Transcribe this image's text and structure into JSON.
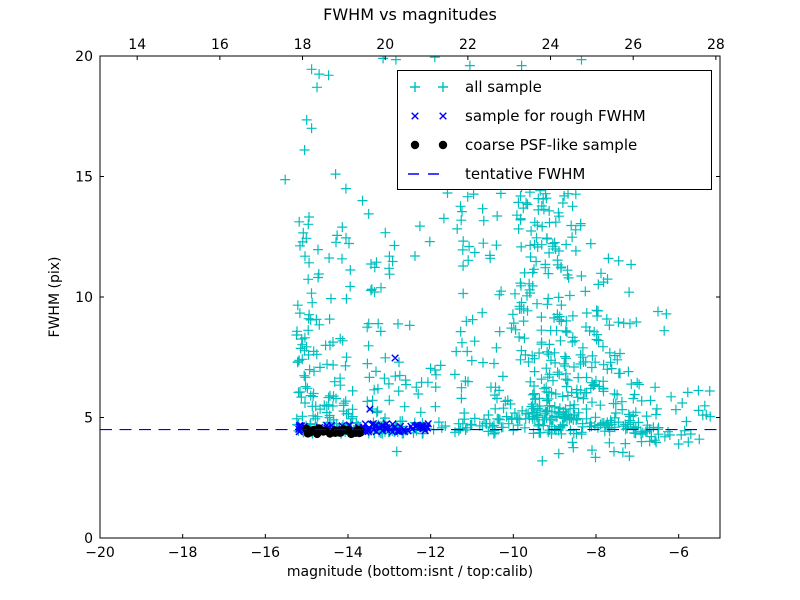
{
  "title": "FWHM vs magnitudes",
  "axes": {
    "bottom": {
      "label": "magnitude (bottom:isnt / top:calib)",
      "ticks": [
        "−20",
        "−18",
        "−16",
        "−14",
        "−12",
        "−10",
        "−8",
        "−6"
      ],
      "tick_values": [
        -20,
        -18,
        -16,
        -14,
        -12,
        -10,
        -8,
        -6
      ],
      "range": [
        -20,
        -5
      ]
    },
    "top": {
      "ticks": [
        "14",
        "16",
        "18",
        "20",
        "22",
        "24",
        "26",
        "28"
      ],
      "tick_values": [
        14,
        16,
        18,
        20,
        22,
        24,
        26,
        28
      ],
      "range": [
        13.1,
        28.1
      ]
    },
    "left": {
      "label": "FWHM (pix)",
      "ticks": [
        "0",
        "5",
        "10",
        "15",
        "20"
      ],
      "tick_values": [
        0,
        5,
        10,
        15,
        20
      ],
      "range": [
        0,
        20
      ]
    }
  },
  "legend": {
    "entries": [
      {
        "label": "all sample",
        "marker": "plus",
        "color": "#00bfbf"
      },
      {
        "label": "sample for rough FWHM",
        "marker": "x",
        "color": "#0000ff"
      },
      {
        "label": "coarse PSF-like sample",
        "marker": "dot",
        "color": "#000000"
      },
      {
        "label": "tentative FWHM",
        "marker": "dash",
        "color": "#0000ff"
      }
    ]
  },
  "chart_data": {
    "type": "scatter",
    "title": "FWHM vs magnitudes",
    "xlabel": "magnitude (bottom:isnt / top:calib)",
    "ylabel": "FWHM (pix)",
    "x_range_bottom_isnt": [
      -20,
      -5
    ],
    "x_range_top_calib": [
      13.1,
      28.1
    ],
    "ylim": [
      0,
      20
    ],
    "grid": false,
    "legend_position": "upper right",
    "tentative_fwhm": 4.5,
    "series": [
      {
        "name": "all sample",
        "marker": "plus",
        "color": "#00bfbf",
        "points": [
          [
            -14.88,
            19.45
          ],
          [
            -14.7,
            19.25
          ],
          [
            -14.47,
            19.2
          ],
          [
            -14.75,
            18.7
          ],
          [
            -13.15,
            19.9
          ],
          [
            -12.84,
            19.85
          ],
          [
            -11.9,
            19.95
          ],
          [
            -11.05,
            19.6
          ],
          [
            -9.8,
            19.6
          ],
          [
            -8.35,
            19.85
          ],
          [
            -15.0,
            17.35
          ],
          [
            -14.88,
            17.0
          ],
          [
            -15.05,
            16.1
          ],
          [
            -15.52,
            14.87
          ],
          [
            -14.3,
            15.1
          ],
          [
            -14.05,
            14.5
          ],
          [
            -13.65,
            14.0
          ],
          [
            -13.5,
            13.45
          ],
          [
            -12.26,
            12.94
          ],
          [
            -12.02,
            12.3
          ],
          [
            -12.38,
            11.7
          ],
          [
            -10.3,
            14.3
          ],
          [
            -9.6,
            14.35
          ],
          [
            -9.2,
            14.1
          ],
          [
            -8.8,
            13.9
          ],
          [
            -7.7,
            11.6
          ],
          [
            -7.45,
            11.5
          ],
          [
            -7.15,
            11.35
          ],
          [
            -7.2,
            10.2
          ],
          [
            -6.5,
            9.4
          ],
          [
            -6.3,
            9.3
          ],
          [
            -6.35,
            8.6
          ],
          [
            -12.82,
            3.59
          ],
          [
            -9.3,
            3.2
          ],
          [
            -8.9,
            3.5
          ],
          [
            -8.55,
            3.75
          ],
          [
            -7.35,
            3.55
          ],
          [
            -6.9,
            4.0
          ],
          [
            -6.0,
            3.9
          ],
          [
            -5.5,
            4.1
          ]
        ],
        "clusters": [
          {
            "x": [
              -15.25,
              -14.62
            ],
            "y": [
              4.4,
              9.5
            ],
            "n": 60,
            "bias": "low"
          },
          {
            "x": [
              -15.22,
              -14.65
            ],
            "y": [
              9.5,
              13.6
            ],
            "n": 16
          },
          {
            "x": [
              -14.62,
              -13.85
            ],
            "y": [
              4.4,
              7.3
            ],
            "n": 45,
            "bias": "low"
          },
          {
            "x": [
              -14.6,
              -13.9
            ],
            "y": [
              7.3,
              13.2
            ],
            "n": 18
          },
          {
            "x": [
              -13.55,
              -12.55
            ],
            "y": [
              4.4,
              9.2
            ],
            "n": 40,
            "bias": "low"
          },
          {
            "x": [
              -13.45,
              -12.6
            ],
            "y": [
              10.2,
              12.9
            ],
            "n": 13
          },
          {
            "x": [
              -12.55,
              -11.6
            ],
            "y": [
              4.6,
              9.0
            ],
            "n": 13
          },
          {
            "x": [
              -15.3,
              -11.5
            ],
            "y": [
              4.33,
              4.85
            ],
            "n": 55,
            "bias": "low"
          },
          {
            "x": [
              -11.5,
              -6.6
            ],
            "y": [
              4.3,
              4.8
            ],
            "n": 70
          },
          {
            "x": [
              -11.45,
              -9.85
            ],
            "y": [
              4.9,
              13.4
            ],
            "n": 65,
            "bias": "low"
          },
          {
            "x": [
              -9.85,
              -8.35
            ],
            "y": [
              4.9,
              14.3
            ],
            "n": 215,
            "bias": "low"
          },
          {
            "x": [
              -8.35,
              -7.7
            ],
            "y": [
              4.6,
              11.0
            ],
            "n": 55,
            "bias": "low"
          },
          {
            "x": [
              -7.7,
              -7.0
            ],
            "y": [
              4.5,
              9.0
            ],
            "n": 40,
            "bias": "low"
          },
          {
            "x": [
              -11.7,
              -7.5
            ],
            "y": [
              12.0,
              15.0
            ],
            "n": 24
          },
          {
            "x": [
              -7.0,
              -6.0
            ],
            "y": [
              4.0,
              6.8
            ],
            "n": 20,
            "bias": "low"
          },
          {
            "x": [
              -6.0,
              -5.05
            ],
            "y": [
              3.9,
              6.2
            ],
            "n": 14
          },
          {
            "x": [
              -8.6,
              -6.3
            ],
            "y": [
              3.3,
              4.2
            ],
            "n": 8
          }
        ]
      },
      {
        "name": "sample for rough FWHM",
        "marker": "x",
        "color": "#0000ff",
        "points": [
          [
            -13.47,
            5.35
          ],
          [
            -12.86,
            7.47
          ]
        ],
        "clusters": [
          {
            "x": [
              -15.2,
              -13.9
            ],
            "y": [
              4.4,
              4.7
            ],
            "n": 25
          },
          {
            "x": [
              -13.9,
              -12.05
            ],
            "y": [
              4.38,
              4.75
            ],
            "n": 60
          }
        ]
      },
      {
        "name": "coarse PSF-like sample",
        "marker": "dot",
        "color": "#000000",
        "points": [],
        "clusters": [
          {
            "x": [
              -15.18,
              -14.42
            ],
            "y": [
              4.3,
              4.55
            ],
            "n": 16
          },
          {
            "x": [
              -14.36,
              -13.62
            ],
            "y": [
              4.32,
              4.52
            ],
            "n": 14
          }
        ]
      },
      {
        "name": "tentative FWHM",
        "marker": "dash",
        "color": "#0000ff",
        "line_y": 4.5
      }
    ]
  }
}
